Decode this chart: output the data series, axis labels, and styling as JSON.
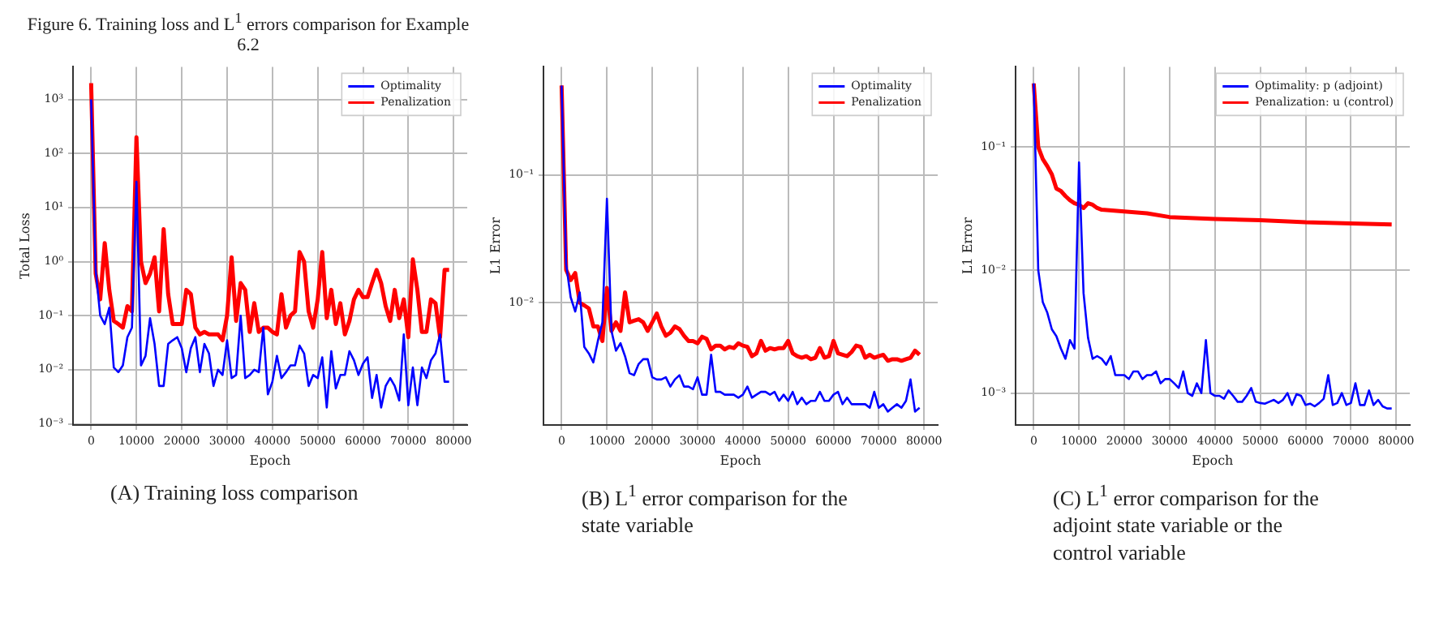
{
  "chart_data": [
    {
      "type": "line",
      "title": "Figure 6. Training loss and L$^{1}$ errors comparison for Example 6.2",
      "xlabel": "Epoch",
      "ylabel": "Total Loss",
      "log": "y",
      "grid": true,
      "legend": "top right",
      "xlim": [
        -4000,
        83000
      ],
      "xticks": [
        0,
        10000,
        20000,
        30000,
        40000,
        50000,
        60000,
        70000,
        80000
      ],
      "ylim": [
        0.00095,
        4000
      ],
      "yticks": [
        {
          "value": 0.001,
          "label": "10⁻³"
        },
        {
          "value": 0.01,
          "label": "10⁻²"
        },
        {
          "value": 0.1,
          "label": "10⁻¹"
        },
        {
          "value": 1,
          "label": "10⁰"
        },
        {
          "value": 10,
          "label": "10¹"
        },
        {
          "value": 100,
          "label": "10²"
        },
        {
          "value": 1000,
          "label": "10³"
        }
      ],
      "annotations": [
        "(A) Training loss comparison"
      ],
      "x": [
        0,
        1000,
        2000,
        3000,
        4000,
        5000,
        6000,
        7000,
        8000,
        9000,
        10000,
        11000,
        12000,
        13000,
        14000,
        15000,
        16000,
        17000,
        18000,
        19000,
        20000,
        21000,
        22000,
        23000,
        24000,
        25000,
        26000,
        27000,
        28000,
        29000,
        30000,
        31000,
        32000,
        33000,
        34000,
        35000,
        36000,
        37000,
        38000,
        39000,
        40000,
        41000,
        42000,
        43000,
        44000,
        45000,
        46000,
        47000,
        48000,
        49000,
        50000,
        51000,
        52000,
        53000,
        54000,
        55000,
        56000,
        57000,
        58000,
        59000,
        60000,
        61000,
        62000,
        63000,
        64000,
        65000,
        66000,
        67000,
        68000,
        69000,
        70000,
        71000,
        72000,
        73000,
        74000,
        75000,
        76000,
        77000,
        78000,
        79000
      ],
      "series": [
        {
          "name": "Optimality",
          "color": "#0000ff",
          "values": [
            1000,
            0.7,
            0.1,
            0.07,
            0.14,
            0.011,
            0.009,
            0.012,
            0.04,
            0.06,
            30,
            0.012,
            0.018,
            0.09,
            0.03,
            0.005,
            0.005,
            0.03,
            0.035,
            0.04,
            0.025,
            0.009,
            0.025,
            0.04,
            0.009,
            0.03,
            0.02,
            0.005,
            0.01,
            0.008,
            0.035,
            0.007,
            0.008,
            0.1,
            0.007,
            0.008,
            0.01,
            0.009,
            0.06,
            0.0035,
            0.006,
            0.018,
            0.007,
            0.009,
            0.012,
            0.012,
            0.028,
            0.02,
            0.005,
            0.008,
            0.007,
            0.017,
            0.002,
            0.022,
            0.0045,
            0.008,
            0.008,
            0.022,
            0.015,
            0.008,
            0.013,
            0.017,
            0.003,
            0.008,
            0.002,
            0.005,
            0.007,
            0.005,
            0.0027,
            0.045,
            0.0022,
            0.011,
            0.0022,
            0.011,
            0.007,
            0.015,
            0.02,
            0.045,
            0.006,
            0.006
          ]
        },
        {
          "name": "Penalization",
          "color": "#ff0000",
          "values": [
            2000,
            0.6,
            0.2,
            2.2,
            0.3,
            0.08,
            0.07,
            0.06,
            0.15,
            0.12,
            200,
            1,
            0.4,
            0.6,
            1.2,
            0.12,
            4,
            0.25,
            0.07,
            0.07,
            0.07,
            0.3,
            0.25,
            0.06,
            0.045,
            0.05,
            0.045,
            0.045,
            0.045,
            0.035,
            0.1,
            1.2,
            0.08,
            0.4,
            0.3,
            0.05,
            0.17,
            0.05,
            0.06,
            0.06,
            0.05,
            0.045,
            0.25,
            0.06,
            0.1,
            0.12,
            1.5,
            1,
            0.12,
            0.06,
            0.2,
            1.5,
            0.09,
            0.3,
            0.07,
            0.17,
            0.045,
            0.08,
            0.2,
            0.3,
            0.22,
            0.22,
            0.4,
            0.7,
            0.4,
            0.15,
            0.08,
            0.3,
            0.09,
            0.2,
            0.04,
            1.1,
            0.3,
            0.05,
            0.05,
            0.2,
            0.17,
            0.04,
            0.7,
            0.7
          ]
        }
      ]
    },
    {
      "type": "line",
      "xlabel": "Epoch",
      "ylabel": "L1 Error",
      "log": "y",
      "grid": true,
      "legend": "top right",
      "xlim": [
        -4000,
        83000
      ],
      "xticks": [
        0,
        10000,
        20000,
        30000,
        40000,
        50000,
        60000,
        70000,
        80000
      ],
      "ylim": [
        0.0011,
        0.7
      ],
      "yticks": [
        {
          "value": 0.01,
          "label": "10⁻²"
        },
        {
          "value": 0.1,
          "label": "10⁻¹"
        }
      ],
      "annotations": [
        "(B) L$^{1}$ error comparison for the state variable"
      ],
      "x": [
        0,
        1000,
        2000,
        3000,
        4000,
        5000,
        6000,
        7000,
        8000,
        9000,
        10000,
        11000,
        12000,
        13000,
        14000,
        15000,
        16000,
        17000,
        18000,
        19000,
        20000,
        21000,
        22000,
        23000,
        24000,
        25000,
        26000,
        27000,
        28000,
        29000,
        30000,
        31000,
        32000,
        33000,
        34000,
        35000,
        36000,
        37000,
        38000,
        39000,
        40000,
        41000,
        42000,
        43000,
        44000,
        45000,
        46000,
        47000,
        48000,
        49000,
        50000,
        51000,
        52000,
        53000,
        54000,
        55000,
        56000,
        57000,
        58000,
        59000,
        60000,
        61000,
        62000,
        63000,
        64000,
        65000,
        66000,
        67000,
        68000,
        69000,
        70000,
        71000,
        72000,
        73000,
        74000,
        75000,
        76000,
        77000,
        78000,
        79000
      ],
      "series": [
        {
          "name": "Optimality",
          "color": "#0000ff",
          "values": [
            0.5,
            0.02,
            0.011,
            0.0085,
            0.012,
            0.0045,
            0.004,
            0.0034,
            0.005,
            0.007,
            0.065,
            0.006,
            0.0042,
            0.0048,
            0.0038,
            0.0028,
            0.0027,
            0.0033,
            0.0036,
            0.0036,
            0.0026,
            0.0025,
            0.0025,
            0.0026,
            0.0022,
            0.0025,
            0.0027,
            0.0022,
            0.0022,
            0.0021,
            0.0026,
            0.0019,
            0.0019,
            0.0039,
            0.002,
            0.002,
            0.0019,
            0.0019,
            0.0019,
            0.0018,
            0.0019,
            0.0022,
            0.0018,
            0.0019,
            0.002,
            0.002,
            0.0019,
            0.002,
            0.0017,
            0.0019,
            0.0017,
            0.002,
            0.0016,
            0.0018,
            0.0016,
            0.0017,
            0.0017,
            0.002,
            0.0017,
            0.0017,
            0.0019,
            0.002,
            0.0016,
            0.0018,
            0.0016,
            0.0016,
            0.0016,
            0.0016,
            0.0015,
            0.002,
            0.0015,
            0.0016,
            0.0014,
            0.0015,
            0.0016,
            0.0015,
            0.0017,
            0.0025,
            0.0014,
            0.0015
          ]
        },
        {
          "name": "Penalization",
          "color": "#ff0000",
          "values": [
            0.5,
            0.018,
            0.015,
            0.017,
            0.01,
            0.0095,
            0.009,
            0.0065,
            0.0065,
            0.005,
            0.013,
            0.006,
            0.007,
            0.006,
            0.012,
            0.007,
            0.0072,
            0.0074,
            0.007,
            0.006,
            0.007,
            0.0082,
            0.0065,
            0.0055,
            0.0058,
            0.0065,
            0.0062,
            0.0055,
            0.005,
            0.005,
            0.0048,
            0.0054,
            0.0052,
            0.0043,
            0.0046,
            0.0046,
            0.0043,
            0.0045,
            0.0044,
            0.0048,
            0.0046,
            0.0045,
            0.0038,
            0.004,
            0.005,
            0.0042,
            0.0044,
            0.0043,
            0.0044,
            0.0044,
            0.005,
            0.004,
            0.0038,
            0.0037,
            0.0038,
            0.0036,
            0.0037,
            0.0044,
            0.0037,
            0.0038,
            0.005,
            0.004,
            0.0039,
            0.0038,
            0.0041,
            0.0046,
            0.0045,
            0.0037,
            0.0039,
            0.0037,
            0.0038,
            0.0039,
            0.0035,
            0.0036,
            0.0036,
            0.0035,
            0.0036,
            0.0037,
            0.0042,
            0.0039
          ]
        }
      ]
    },
    {
      "type": "line",
      "xlabel": "Epoch",
      "ylabel": "L1 Error",
      "log": "y",
      "grid": true,
      "legend": "top right",
      "xlim": [
        -4000,
        83000
      ],
      "xticks": [
        0,
        10000,
        20000,
        30000,
        40000,
        50000,
        60000,
        70000,
        80000
      ],
      "ylim": [
        0.00055,
        0.45
      ],
      "yticks": [
        {
          "value": 0.001,
          "label": "10⁻³"
        },
        {
          "value": 0.01,
          "label": "10⁻²"
        },
        {
          "value": 0.1,
          "label": "10⁻¹"
        }
      ],
      "annotations": [
        "(C) L$^{1}$ error comparison for the adjoint state variable or the control variable"
      ],
      "x": [
        0,
        1000,
        2000,
        3000,
        4000,
        5000,
        6000,
        7000,
        8000,
        9000,
        10000,
        11000,
        12000,
        13000,
        14000,
        15000,
        16000,
        17000,
        18000,
        19000,
        20000,
        21000,
        22000,
        23000,
        24000,
        25000,
        26000,
        27000,
        28000,
        29000,
        30000,
        31000,
        32000,
        33000,
        34000,
        35000,
        36000,
        37000,
        38000,
        39000,
        40000,
        41000,
        42000,
        43000,
        44000,
        45000,
        46000,
        47000,
        48000,
        49000,
        50000,
        51000,
        52000,
        53000,
        54000,
        55000,
        56000,
        57000,
        58000,
        59000,
        60000,
        61000,
        62000,
        63000,
        64000,
        65000,
        66000,
        67000,
        68000,
        69000,
        70000,
        71000,
        72000,
        73000,
        74000,
        75000,
        76000,
        77000,
        78000,
        79000
      ],
      "series": [
        {
          "name": "Optimality: p (adjoint)",
          "color": "#0000ff",
          "values": [
            0.33,
            0.01,
            0.0055,
            0.0045,
            0.0033,
            0.0029,
            0.0023,
            0.0019,
            0.0027,
            0.0023,
            0.075,
            0.0065,
            0.0028,
            0.0019,
            0.002,
            0.0019,
            0.0017,
            0.002,
            0.0014,
            0.0014,
            0.0014,
            0.0013,
            0.0015,
            0.0015,
            0.0013,
            0.0014,
            0.0014,
            0.0015,
            0.0012,
            0.0013,
            0.0013,
            0.0012,
            0.0011,
            0.0015,
            0.001,
            0.00095,
            0.0012,
            0.001,
            0.0027,
            0.001,
            0.00095,
            0.00095,
            0.0009,
            0.00105,
            0.00095,
            0.00085,
            0.00085,
            0.00095,
            0.0011,
            0.00085,
            0.00083,
            0.00082,
            0.00085,
            0.00088,
            0.00083,
            0.00088,
            0.001,
            0.0008,
            0.00098,
            0.00095,
            0.0008,
            0.00082,
            0.00078,
            0.00083,
            0.0009,
            0.0014,
            0.0008,
            0.00083,
            0.001,
            0.0008,
            0.00083,
            0.0012,
            0.0008,
            0.0008,
            0.00105,
            0.0008,
            0.00088,
            0.00078,
            0.00075,
            0.00075
          ]
        },
        {
          "name": "Penalization: u (control)",
          "color": "#ff0000",
          "x": [
            0,
            1000,
            2000,
            3000,
            4000,
            5000,
            6000,
            7000,
            8000,
            9000,
            10000,
            11000,
            12000,
            13000,
            14000,
            15000,
            20000,
            25000,
            30000,
            40000,
            50000,
            60000,
            70000,
            79000
          ],
          "values": [
            0.33,
            0.1,
            0.08,
            0.07,
            0.06,
            0.046,
            0.044,
            0.04,
            0.037,
            0.035,
            0.034,
            0.032,
            0.035,
            0.034,
            0.032,
            0.031,
            0.03,
            0.029,
            0.027,
            0.026,
            0.0255,
            0.0245,
            0.024,
            0.0235
          ]
        }
      ]
    }
  ]
}
